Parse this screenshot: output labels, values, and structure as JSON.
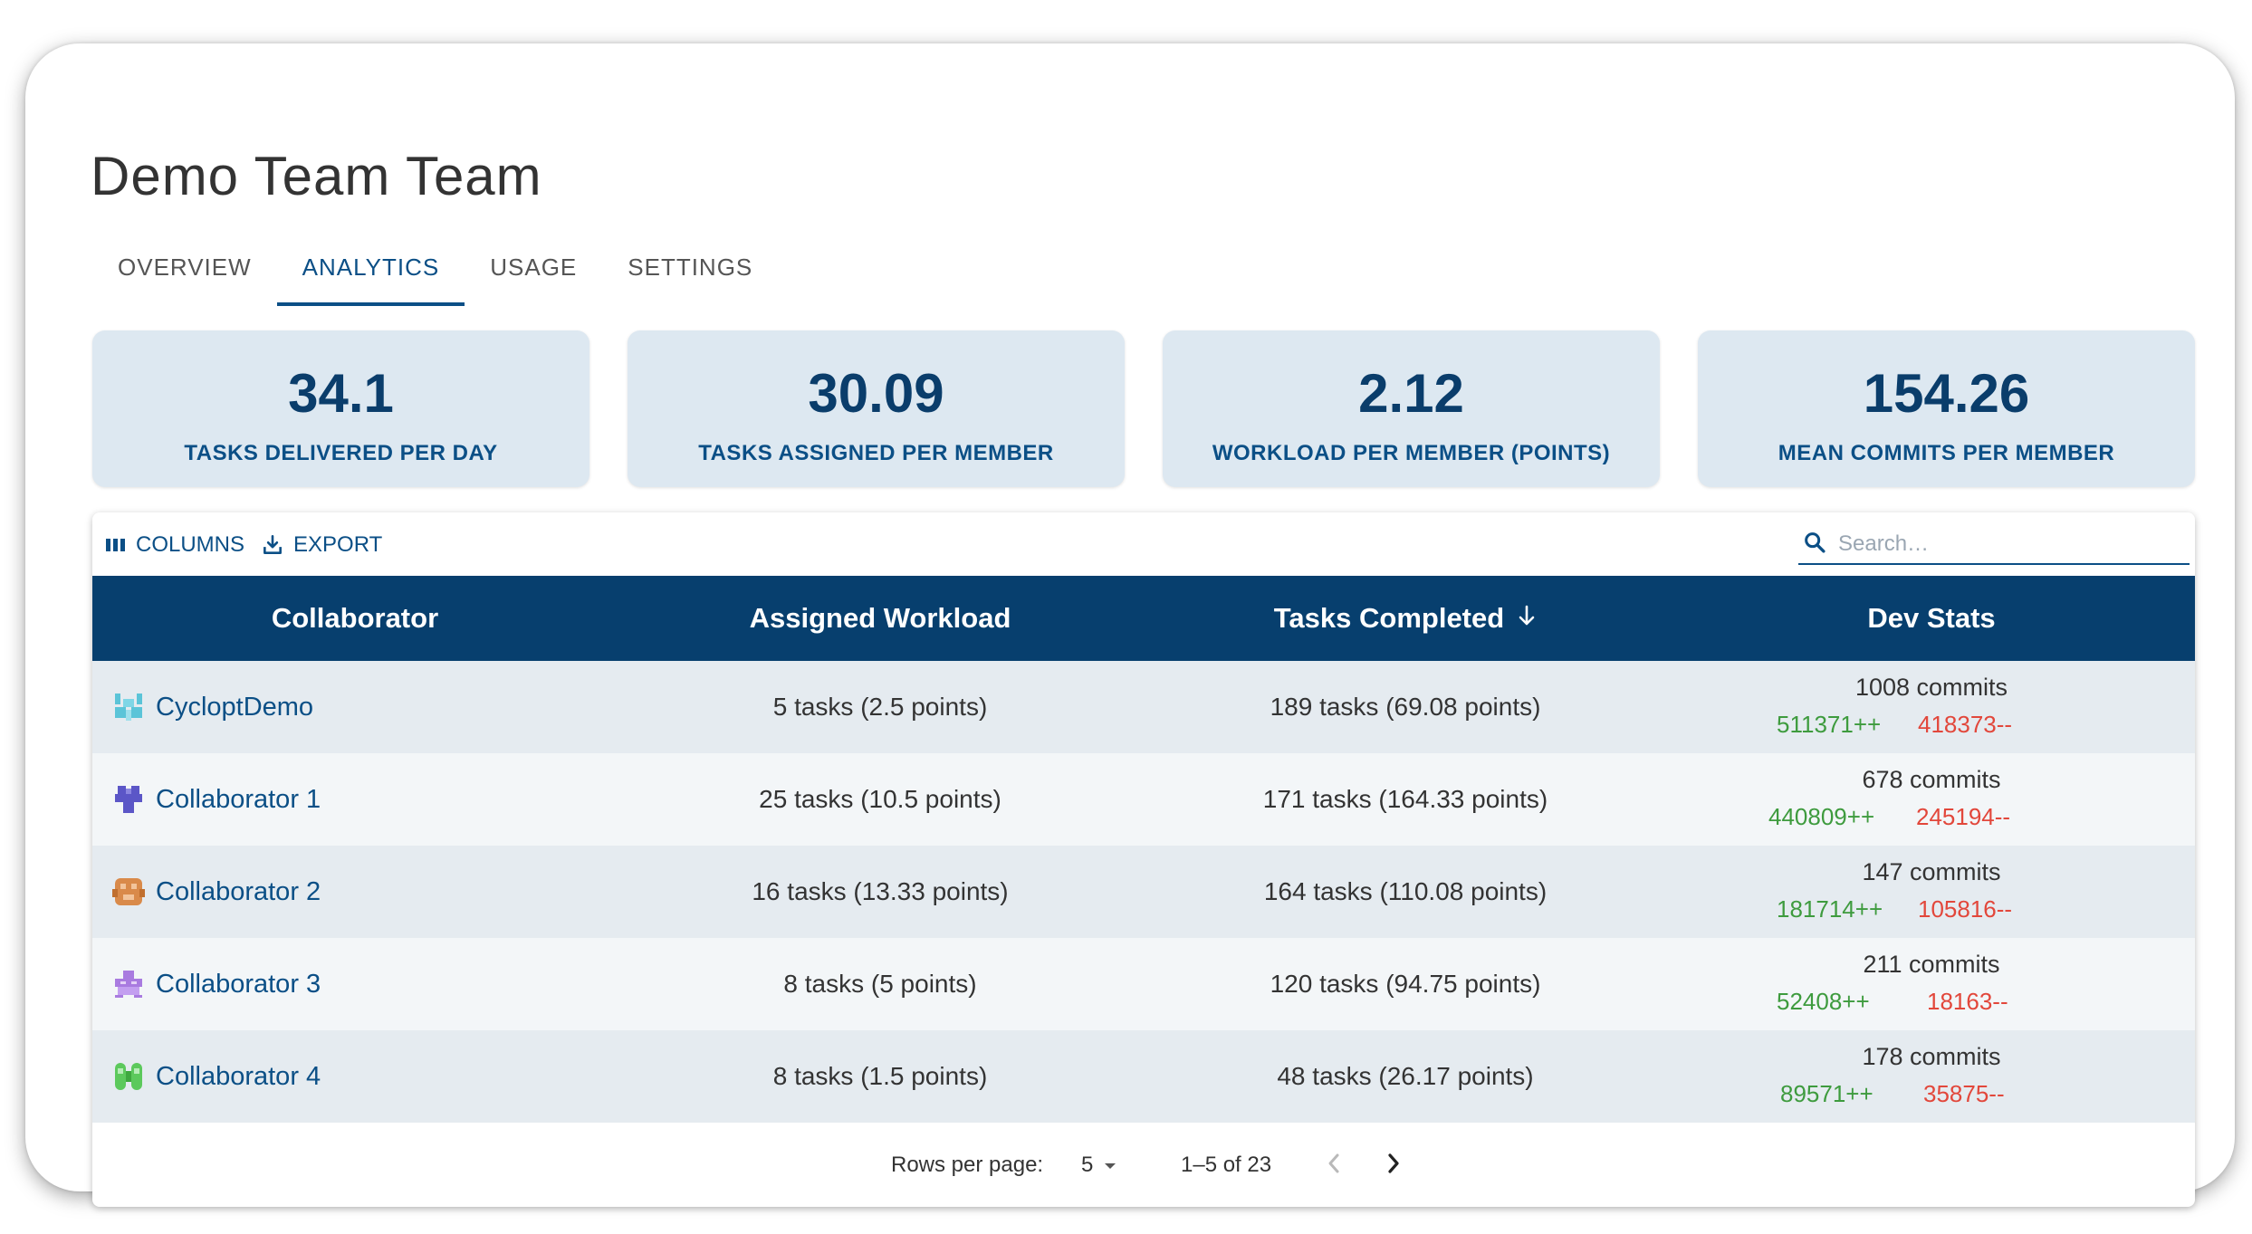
{
  "page": {
    "title": "Demo Team Team",
    "tabs": [
      "OVERVIEW",
      "ANALYTICS",
      "USAGE",
      "SETTINGS"
    ],
    "active_tab": "ANALYTICS"
  },
  "stats": [
    {
      "value": "34.1",
      "label": "TASKS DELIVERED PER DAY"
    },
    {
      "value": "30.09",
      "label": "TASKS ASSIGNED PER MEMBER"
    },
    {
      "value": "2.12",
      "label": "WORKLOAD PER MEMBER (POINTS)"
    },
    {
      "value": "154.26",
      "label": "MEAN COMMITS PER MEMBER"
    }
  ],
  "toolbar": {
    "columns_label": "COLUMNS",
    "export_label": "EXPORT",
    "search_placeholder": "Search…"
  },
  "table": {
    "headers": [
      "Collaborator",
      "Assigned Workload",
      "Tasks Completed",
      "Dev Stats"
    ],
    "sort_icon": "arrow-down-icon",
    "rows": [
      {
        "name": "CycloptDemo",
        "avatar_color": "#5bc4d8",
        "workload": "5 tasks (2.5 points)",
        "completed": "189 tasks (69.08 points)",
        "commits": "1008 commits",
        "additions": "511371++",
        "deletions": "418373--"
      },
      {
        "name": "Collaborator 1",
        "avatar_color": "#5b56c7",
        "workload": "25 tasks (10.5 points)",
        "completed": "171 tasks (164.33 points)",
        "commits": "678 commits",
        "additions": "440809++",
        "deletions": "245194--"
      },
      {
        "name": "Collaborator 2",
        "avatar_color": "#d98a4a",
        "workload": "16 tasks (13.33 points)",
        "completed": "164 tasks (110.08 points)",
        "commits": "147 commits",
        "additions": "181714++",
        "deletions": "105816--"
      },
      {
        "name": "Collaborator 3",
        "avatar_color": "#a97be0",
        "workload": "8 tasks (5 points)",
        "completed": "120 tasks (94.75 points)",
        "commits": "211 commits",
        "additions": "52408++",
        "deletions": "18163--"
      },
      {
        "name": "Collaborator 4",
        "avatar_color": "#5cc95c",
        "workload": "8 tasks (1.5 points)",
        "completed": "48 tasks (26.17 points)",
        "commits": "178 commits",
        "additions": "89571++",
        "deletions": "35875--"
      }
    ]
  },
  "pagination": {
    "rows_per_page_label": "Rows per page:",
    "rows_per_page": "5",
    "range": "1–5 of 23"
  },
  "colors": {
    "accent": "#0b4f86",
    "header_bg": "#073f6e",
    "card_bg": "#dde8f1",
    "additions": "#3e9b3e",
    "deletions": "#e2473b"
  }
}
